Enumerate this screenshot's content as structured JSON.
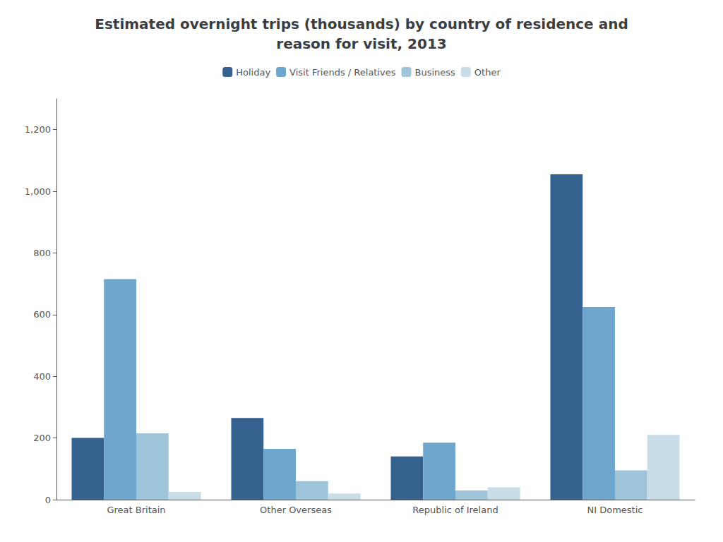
{
  "chart_data": {
    "type": "bar",
    "title": "Estimated overnight trips (thousands) by country of residence and\nreason for visit, 2013",
    "categories": [
      "Great Britain",
      "Other Overseas",
      "Republic of Ireland",
      "NI Domestic"
    ],
    "series": [
      {
        "name": "Holiday",
        "color": "#34618e",
        "values": [
          200,
          265,
          140,
          1055
        ]
      },
      {
        "name": "Visit Friends / Relatives",
        "color": "#6ea6cd",
        "values": [
          715,
          165,
          185,
          625
        ]
      },
      {
        "name": "Business",
        "color": "#9dc4d8",
        "values": [
          215,
          60,
          30,
          95
        ]
      },
      {
        "name": "Other",
        "color": "#c8dde8",
        "values": [
          25,
          20,
          40,
          210
        ]
      }
    ],
    "ylim": [
      0,
      1300
    ],
    "yticks": [
      0,
      200,
      400,
      600,
      800,
      {
        "value": 1000,
        "label": "1,000"
      },
      {
        "value": 1200,
        "label": "1,200"
      }
    ],
    "grid": false,
    "legend": "top"
  }
}
